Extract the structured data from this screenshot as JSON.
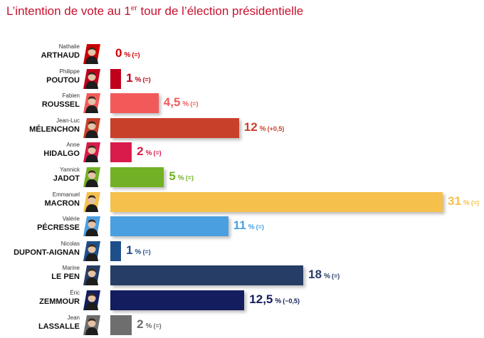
{
  "title": {
    "prefix": "L’intention de vote au 1",
    "sup": "er",
    "suffix": " tour de l’élection présidentielle"
  },
  "chart_data": {
    "type": "bar",
    "orientation": "horizontal",
    "title": "L’intention de vote au 1er tour de l’élection présidentielle",
    "xlim": [
      0,
      31
    ],
    "unit": "%",
    "candidates": [
      {
        "first": "Nathalie",
        "last": "ARTHAUD",
        "value": 0,
        "label": "0",
        "change": "(=)",
        "color": "#cc0000"
      },
      {
        "first": "Philippe",
        "last": "POUTOU",
        "value": 1,
        "label": "1",
        "change": "(=)",
        "color": "#c0001a"
      },
      {
        "first": "Fabien",
        "last": "ROUSSEL",
        "value": 4.5,
        "label": "4,5",
        "change": "(=)",
        "color": "#f25a5a"
      },
      {
        "first": "Jean-Luc",
        "last": "MÉLENCHON",
        "value": 12,
        "label": "12",
        "change": "(+0,5)",
        "color": "#c8402a"
      },
      {
        "first": "Anne",
        "last": "HIDALGO",
        "value": 2,
        "label": "2",
        "change": "(=)",
        "color": "#d81b4a"
      },
      {
        "first": "Yannick",
        "last": "JADOT",
        "value": 5,
        "label": "5",
        "change": "(=)",
        "color": "#72b126"
      },
      {
        "first": "Emmanuel",
        "last": "MACRON",
        "value": 31,
        "label": "31",
        "change": "(=)",
        "color": "#f5c04c"
      },
      {
        "first": "Valérie",
        "last": "PÉCRESSE",
        "value": 11,
        "label": "11",
        "change": "(=)",
        "color": "#4a9fe0"
      },
      {
        "first": "Nicolas",
        "last": "DUPONT-AIGNAN",
        "value": 1,
        "label": "1",
        "change": "(=)",
        "color": "#1f4f8a"
      },
      {
        "first": "Marine",
        "last": "LE PEN",
        "value": 18,
        "label": "18",
        "change": "(=)",
        "color": "#263d66"
      },
      {
        "first": "Éric",
        "last": "ZEMMOUR",
        "value": 12.5,
        "label": "12,5",
        "change": "(−0,5)",
        "color": "#141e5e"
      },
      {
        "first": "Jean",
        "last": "LASSALLE",
        "value": 2,
        "label": "2",
        "change": "(=)",
        "color": "#6e6e6e"
      }
    ]
  }
}
